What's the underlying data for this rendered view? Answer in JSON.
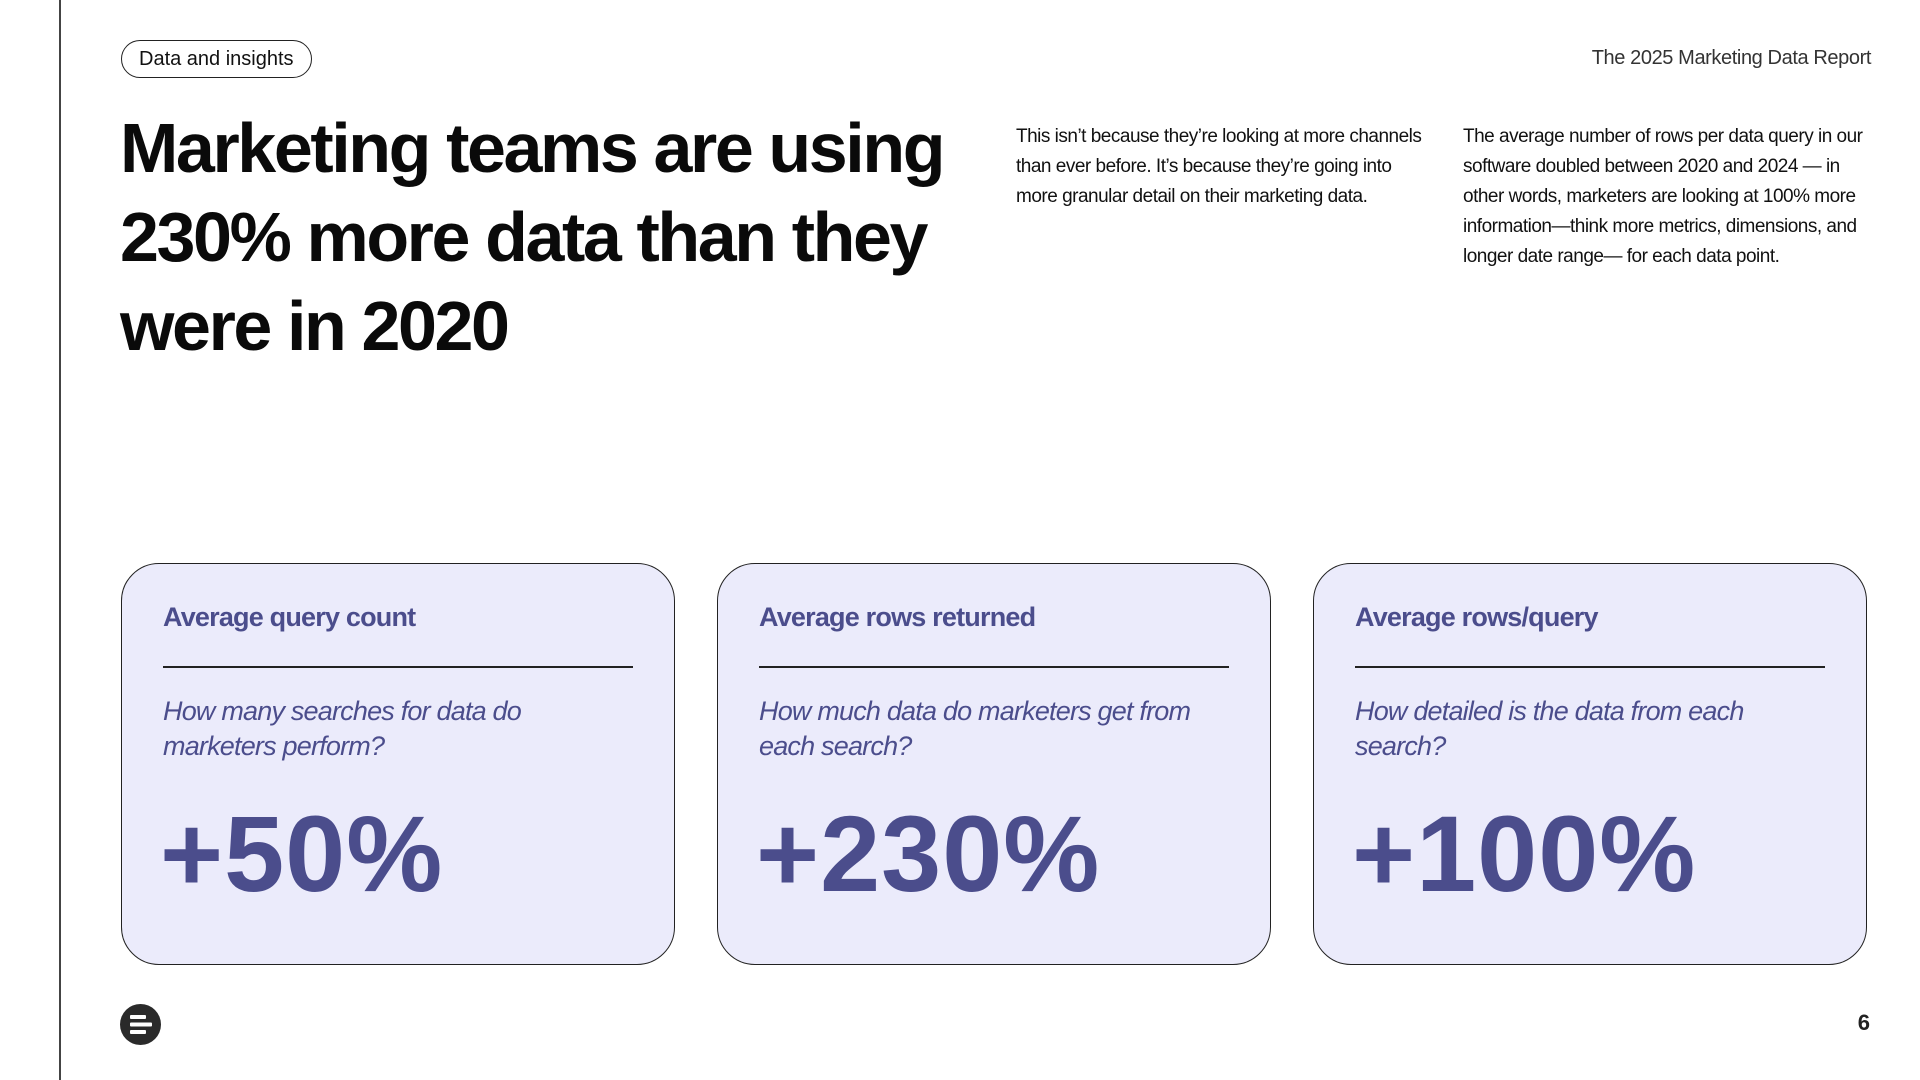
{
  "header": {
    "tag": "Data and insights",
    "report_title": "The 2025 Marketing Data Report"
  },
  "headline": "Marketing teams are using 230% more data than they were in 2020",
  "intro": {
    "paragraph_1": "This isn’t because they’re looking at more channels than ever before. It’s because they’re going into more granular detail on their marketing data.",
    "paragraph_2": "The average number of rows per data query in our software doubled between 2020 and 2024 — in other words, marketers are looking at 100% more information—think more metrics, dimensions, and longer date range— for each data point."
  },
  "cards": [
    {
      "title": "Average query count",
      "question": "How many searches for data do marketers perform?",
      "value": "+50%"
    },
    {
      "title": "Average rows returned",
      "question": "How much data do marketers get from each search?",
      "value": "+230%"
    },
    {
      "title": "Average rows/query",
      "question": "How detailed is the data from each search?",
      "value": "+100%"
    }
  ],
  "footer": {
    "logo_icon": "brand-logo-icon",
    "page_number": "6"
  },
  "colors": {
    "accent": "#4b4d8c",
    "card_bg": "#ebebfb",
    "text": "#111111"
  }
}
